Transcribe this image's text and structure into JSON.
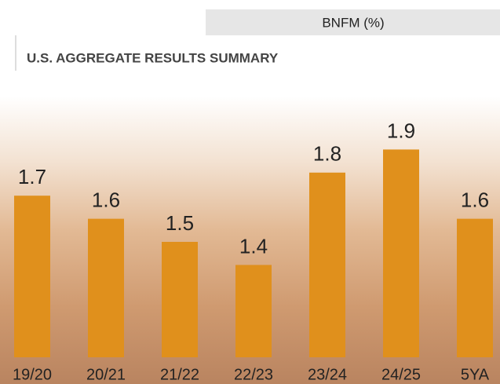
{
  "header": "BNFM (%)",
  "chart_data": {
    "type": "bar",
    "title": "U.S. AGGREGATE RESULTS SUMMARY",
    "categories": [
      "19/20",
      "20/21",
      "21/22",
      "22/23",
      "23/24",
      "24/25",
      "5YA"
    ],
    "values": [
      1.7,
      1.6,
      1.5,
      1.4,
      1.8,
      1.9,
      1.6
    ],
    "color": "#e0901c"
  }
}
